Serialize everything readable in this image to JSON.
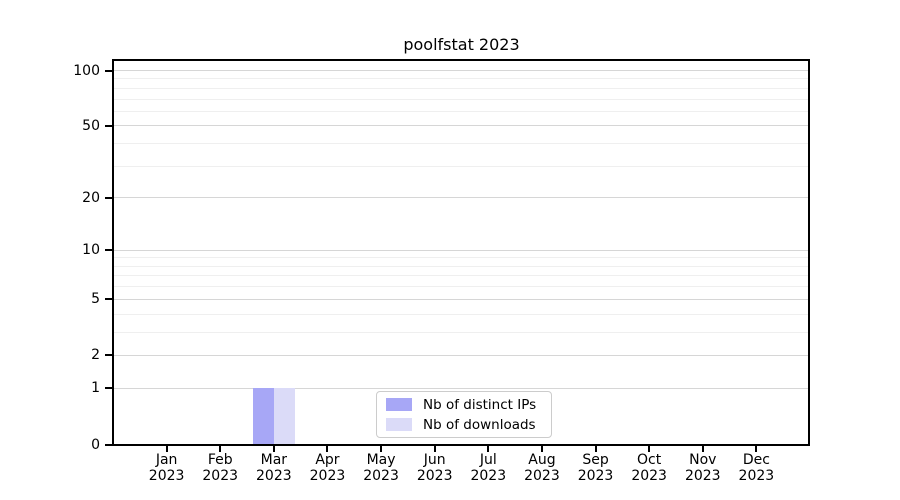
{
  "title": "poolfstat 2023",
  "legend": {
    "items": [
      {
        "label": "Nb of distinct IPs",
        "color": "#a7a7f6"
      },
      {
        "label": "Nb of downloads",
        "color": "#dbdbf8"
      }
    ]
  },
  "chart_data": {
    "type": "bar",
    "title": "poolfstat 2023",
    "categories": [
      "Jan",
      "Feb",
      "Mar",
      "Apr",
      "May",
      "Jun",
      "Jul",
      "Aug",
      "Sep",
      "Oct",
      "Nov",
      "Dec"
    ],
    "year": "2023",
    "series": [
      {
        "name": "Nb of distinct IPs",
        "color": "#a7a7f6",
        "values": [
          0,
          0,
          1,
          0,
          0,
          0,
          0,
          0,
          0,
          0,
          0,
          0
        ]
      },
      {
        "name": "Nb of downloads",
        "color": "#dbdbf8",
        "values": [
          0,
          0,
          1,
          0,
          0,
          0,
          0,
          0,
          0,
          0,
          0,
          0
        ]
      }
    ],
    "yscale": "log1p",
    "yticks": [
      0,
      1,
      2,
      5,
      10,
      20,
      50,
      100
    ],
    "minor_yticks": [
      3,
      4,
      6,
      7,
      8,
      9,
      30,
      40,
      60,
      70,
      80,
      90
    ],
    "ylim": [
      0,
      113
    ],
    "grid": true,
    "legend_position": "lower center inside"
  },
  "colors": {
    "major_grid": "#d6d6d6",
    "minor_grid": "#efefef",
    "spine": "#000000",
    "legend_border": "#cccccc"
  }
}
